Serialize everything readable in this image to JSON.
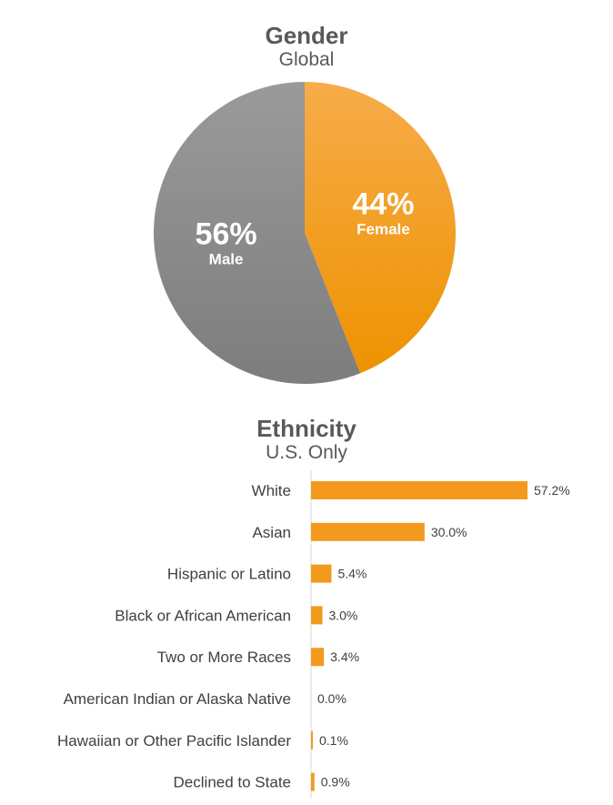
{
  "gender": {
    "title": "Gender",
    "subtitle": "Global"
  },
  "ethnicity": {
    "title": "Ethnicity",
    "subtitle": "U.S. Only"
  },
  "colors": {
    "orange": "#F39A1E",
    "orange_light": "#F6A944",
    "gray": "#898989",
    "gray_light": "#9A9A9A",
    "axis": "#D9D9D9"
  },
  "chart_data": [
    {
      "type": "pie",
      "title": "Gender",
      "subtitle": "Global",
      "slices": [
        {
          "name": "Female",
          "value": 44,
          "label": "44%",
          "color": "#F39A1E"
        },
        {
          "name": "Male",
          "value": 56,
          "label": "56%",
          "color": "#898989"
        }
      ]
    },
    {
      "type": "bar",
      "orientation": "horizontal",
      "title": "Ethnicity",
      "subtitle": "U.S. Only",
      "categories": [
        "White",
        "Asian",
        "Hispanic or Latino",
        "Black or African American",
        "Two or More Races",
        "American Indian or Alaska Native",
        "Hawaiian or Other Pacific Islander",
        "Declined to State"
      ],
      "values": [
        57.2,
        30.0,
        5.4,
        3.0,
        3.4,
        0.0,
        0.1,
        0.9
      ],
      "value_labels": [
        "57.2%",
        "30.0%",
        "5.4%",
        "3.0%",
        "3.4%",
        "0.0%",
        "0.1%",
        "0.9%"
      ],
      "color": "#F39A1E",
      "grid": false
    }
  ]
}
